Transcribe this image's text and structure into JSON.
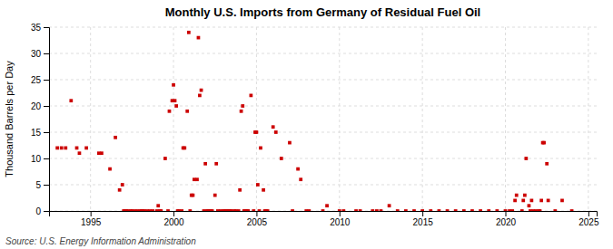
{
  "chart_data": {
    "type": "scatter",
    "title": "Monthly U.S. Imports from Germany of Residual Fuel Oil",
    "ylabel": "Thousand Barrels per Day",
    "source": "Source: U.S. Energy Information Administration",
    "color": "#cc0000",
    "marker": "square",
    "grid": true,
    "xlim": [
      1992.5,
      2025.5
    ],
    "ylim": [
      0,
      35
    ],
    "xticks": [
      1995,
      2000,
      2005,
      2010,
      2015,
      2020,
      2025
    ],
    "yticks": [
      0,
      5,
      10,
      15,
      20,
      25,
      30,
      35
    ],
    "x": [
      1993.0,
      1993.25,
      1993.5,
      1993.83,
      1994.17,
      1994.33,
      1994.75,
      1995.5,
      1995.67,
      1996.17,
      1996.5,
      1996.75,
      1996.92,
      1997.0,
      1997.08,
      1997.17,
      1997.25,
      1997.42,
      1997.5,
      1997.67,
      1997.83,
      1998.0,
      1998.08,
      1998.17,
      1998.25,
      1998.42,
      1998.58,
      1998.75,
      1999.0,
      1999.08,
      1999.17,
      1999.25,
      1999.5,
      1999.67,
      1999.75,
      1999.92,
      2000.0,
      2000.08,
      2000.17,
      2000.25,
      2000.33,
      2000.5,
      2000.58,
      2000.67,
      2000.83,
      2000.92,
      2001.0,
      2001.08,
      2001.17,
      2001.25,
      2001.42,
      2001.5,
      2001.58,
      2001.67,
      2001.83,
      2001.92,
      2002.0,
      2002.08,
      2002.17,
      2002.25,
      2002.33,
      2002.5,
      2002.58,
      2002.67,
      2002.83,
      2003.0,
      2003.08,
      2003.17,
      2003.25,
      2003.33,
      2003.42,
      2003.5,
      2003.67,
      2003.75,
      2003.92,
      2004.0,
      2004.08,
      2004.17,
      2004.25,
      2004.33,
      2004.42,
      2004.5,
      2004.67,
      2004.83,
      2004.92,
      2005.0,
      2005.08,
      2005.17,
      2005.25,
      2005.42,
      2005.5,
      2005.58,
      2005.67,
      2006.0,
      2006.17,
      2006.5,
      2007.0,
      2007.17,
      2007.5,
      2007.67,
      2008.0,
      2008.17,
      2009.0,
      2009.25,
      2010.0,
      2010.25,
      2011.0,
      2011.25,
      2012.0,
      2012.25,
      2012.5,
      2013.0,
      2013.5,
      2014.0,
      2014.5,
      2015.0,
      2015.5,
      2016.0,
      2016.5,
      2017.0,
      2017.5,
      2018.0,
      2018.5,
      2019.0,
      2019.5,
      2020.0,
      2020.25,
      2020.42,
      2020.58,
      2020.67,
      2021.0,
      2021.08,
      2021.17,
      2021.25,
      2021.42,
      2021.5,
      2021.58,
      2021.67,
      2021.83,
      2022.0,
      2022.08,
      2022.17,
      2022.25,
      2022.33,
      2022.5,
      2022.58,
      2023.0,
      2023.42,
      2024.0
    ],
    "values": [
      12,
      12,
      12,
      21,
      12,
      11,
      12,
      11,
      11,
      8,
      14,
      4,
      5,
      0,
      0,
      0,
      0,
      0,
      0,
      0,
      0,
      0,
      0,
      0,
      0,
      0,
      0,
      0,
      0,
      1,
      0,
      0,
      10,
      0,
      19,
      21,
      24,
      21,
      20,
      0,
      0,
      0,
      12,
      12,
      19,
      34,
      0,
      3,
      3,
      6,
      6,
      33,
      22,
      23,
      0,
      9,
      0,
      0,
      0,
      0,
      0,
      3,
      9,
      0,
      0,
      0,
      0,
      0,
      0,
      0,
      0,
      0,
      0,
      0,
      0,
      4,
      19,
      20,
      0,
      0,
      0,
      0,
      22,
      0,
      15,
      15,
      5,
      0,
      12,
      4,
      0,
      0,
      0,
      16,
      15,
      10,
      13,
      0,
      8,
      6,
      0,
      0,
      0,
      1,
      0,
      0,
      0,
      0,
      0,
      0,
      0,
      1,
      0,
      0,
      0,
      0,
      0,
      0,
      0,
      0,
      0,
      0,
      0,
      0,
      0,
      0,
      0,
      0,
      2,
      3,
      0,
      2,
      3,
      10,
      1,
      0,
      2,
      0,
      0,
      0,
      0,
      2,
      13,
      13,
      9,
      2,
      0,
      2,
      0
    ]
  }
}
